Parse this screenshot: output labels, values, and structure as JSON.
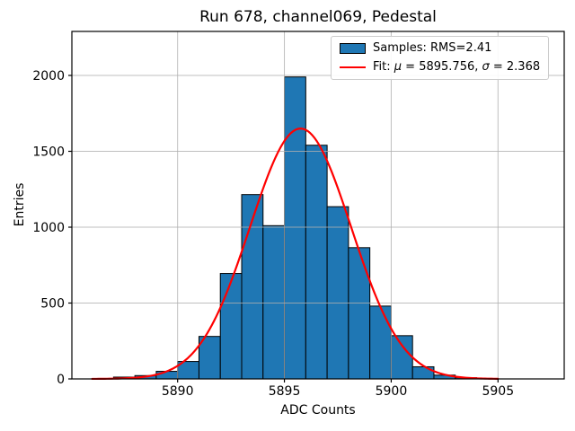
{
  "chart_data": {
    "type": "bar",
    "subtype": "histogram",
    "title": "Run 678, channel069, Pedestal",
    "xlabel": "ADC Counts",
    "ylabel": "Entries",
    "grid": true,
    "xlim": [
      5885.05,
      5908.1
    ],
    "ylim": [
      0,
      2290
    ],
    "x_ticks": [
      5890,
      5895,
      5900,
      5905
    ],
    "y_ticks": [
      0,
      500,
      1000,
      1500,
      2000
    ],
    "bin_width": 1,
    "bin_left_edges": [
      5887,
      5888,
      5889,
      5890,
      5891,
      5892,
      5893,
      5894,
      5895,
      5896,
      5897,
      5898,
      5899,
      5900,
      5901,
      5902,
      5903
    ],
    "values": [
      12,
      22,
      50,
      115,
      280,
      695,
      1215,
      1010,
      1990,
      1540,
      1135,
      865,
      480,
      285,
      80,
      25,
      8
    ],
    "colors": {
      "bar_fill": "#1f77b4",
      "bar_edge": "#000000",
      "fit_line": "#ff0000",
      "grid": "#b0b0b0",
      "axes": "#000000",
      "background": "#ffffff"
    },
    "fit": {
      "type": "gaussian",
      "mu": 5895.756,
      "sigma": 2.368,
      "amplitude": 1650,
      "x_range": [
        5886,
        5905
      ]
    },
    "legend": {
      "position": "upper-right",
      "entries": [
        {
          "name": "samples",
          "swatch": "patch",
          "parts": [
            {
              "t": "Samples: RMS=2.41",
              "i": false
            }
          ]
        },
        {
          "name": "fit",
          "swatch": "line",
          "parts": [
            {
              "t": "Fit: ",
              "i": false
            },
            {
              "t": "μ",
              "i": true
            },
            {
              "t": " = 5895.756, ",
              "i": false
            },
            {
              "t": "σ",
              "i": true
            },
            {
              "t": " = 2.368",
              "i": false
            }
          ]
        }
      ]
    }
  }
}
